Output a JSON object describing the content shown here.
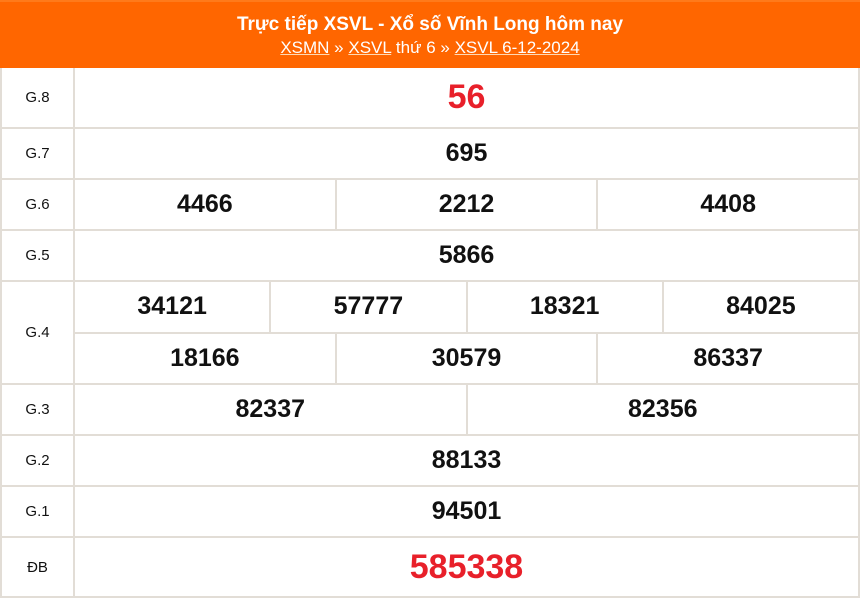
{
  "header": {
    "title": "Trực tiếp XSVL - Xổ số Vĩnh Long hôm nay",
    "breadcrumb": {
      "link1": "XSMN",
      "sep1": " » ",
      "link2": "XSVL",
      "text": " thứ 6 » ",
      "link3": "XSVL 6-12-2024"
    }
  },
  "colors": {
    "header_bg": "#ff6600",
    "special": "#e8202a"
  },
  "prizes": [
    {
      "label": "G.8",
      "rows": [
        [
          "56"
        ]
      ],
      "highlight": true
    },
    {
      "label": "G.7",
      "rows": [
        [
          "695"
        ]
      ]
    },
    {
      "label": "G.6",
      "rows": [
        [
          "4466",
          "2212",
          "4408"
        ]
      ]
    },
    {
      "label": "G.5",
      "rows": [
        [
          "5866"
        ]
      ]
    },
    {
      "label": "G.4",
      "rows": [
        [
          "34121",
          "57777",
          "18321",
          "84025"
        ],
        [
          "18166",
          "30579",
          "86337"
        ]
      ]
    },
    {
      "label": "G.3",
      "rows": [
        [
          "82337",
          "82356"
        ]
      ]
    },
    {
      "label": "G.2",
      "rows": [
        [
          "88133"
        ]
      ]
    },
    {
      "label": "G.1",
      "rows": [
        [
          "94501"
        ]
      ]
    },
    {
      "label": "ĐB",
      "rows": [
        [
          "585338"
        ]
      ],
      "highlight": true
    }
  ]
}
